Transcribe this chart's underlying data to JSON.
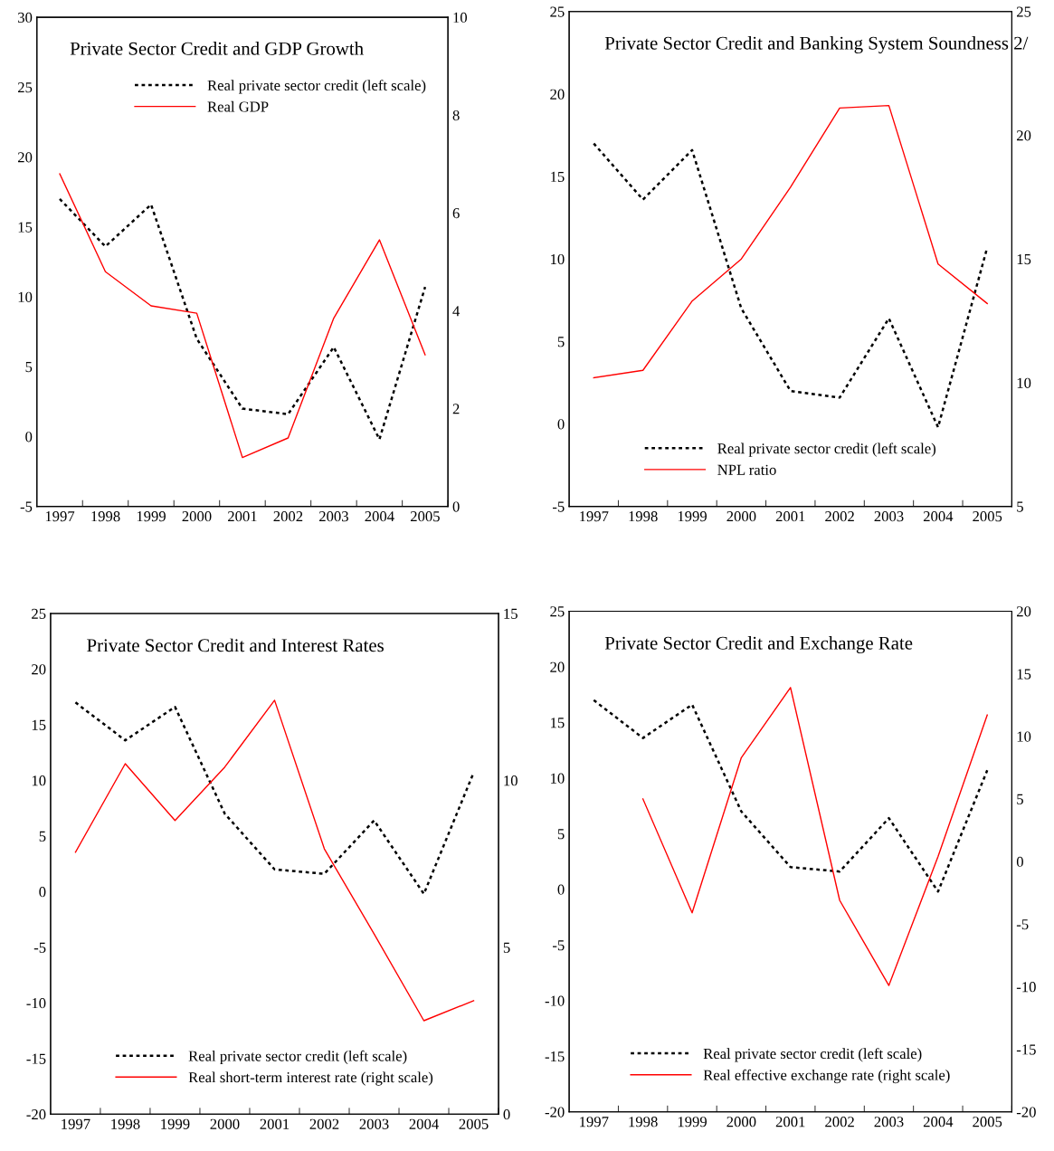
{
  "chart_data": [
    {
      "type": "line",
      "title": "Private Sector Credit and GDP Growth",
      "categories": [
        "1997",
        "1998",
        "1999",
        "2000",
        "2001",
        "2002",
        "2003",
        "2004",
        "2005"
      ],
      "ylim": [
        -5,
        30
      ],
      "yticks": [
        -5,
        0,
        5,
        10,
        15,
        20,
        25,
        30
      ],
      "y2lim": [
        0,
        10
      ],
      "y2ticks": [
        0,
        2,
        4,
        6,
        8,
        10
      ],
      "grid": false,
      "legend": "top right",
      "marker": "none",
      "series": [
        {
          "name": "Real private sector credit (left scale)",
          "color": "#000000",
          "line_style": "dotted",
          "values": [
            17,
            13.6,
            16.6,
            7,
            2,
            1.6,
            6.4,
            -0.2,
            10.7
          ]
        },
        {
          "name": "Real GDP",
          "color": "#ff0000",
          "line_style": "solid",
          "axis": "y2",
          "values": [
            6.8,
            4.8,
            4.1,
            3.95,
            1.0,
            1.4,
            3.85,
            5.45,
            3.1
          ]
        }
      ]
    },
    {
      "type": "line",
      "title": "Private Sector Credit and Banking System Soundness 2/",
      "categories": [
        "1997",
        "1998",
        "1999",
        "2000",
        "2001",
        "2002",
        "2003",
        "2004",
        "2005"
      ],
      "ylim": [
        -5,
        25
      ],
      "yticks": [
        -5,
        0,
        5,
        10,
        15,
        20,
        25
      ],
      "y2lim": [
        5,
        25
      ],
      "y2ticks": [
        5,
        10,
        15,
        20,
        25
      ],
      "grid": false,
      "legend": "bottom",
      "marker": "none",
      "series": [
        {
          "name": "Real private sector credit (left scale)",
          "color": "#000000",
          "line_style": "dotted",
          "values": [
            17,
            13.6,
            16.6,
            7,
            2,
            1.6,
            6.4,
            -0.2,
            10.7
          ]
        },
        {
          "name": "NPL ratio",
          "color": "#ff0000",
          "line_style": "solid",
          "axis": "y2",
          "values": [
            10.2,
            10.5,
            13.3,
            15.0,
            17.9,
            21.1,
            21.2,
            14.8,
            13.2
          ]
        }
      ]
    },
    {
      "type": "line",
      "title": "Private Sector Credit and Interest Rates",
      "categories": [
        "1997",
        "1998",
        "1999",
        "2000",
        "2001",
        "2002",
        "2003",
        "2004",
        "2005"
      ],
      "ylim": [
        -20,
        25
      ],
      "yticks": [
        -20,
        -15,
        -10,
        -5,
        0,
        5,
        10,
        15,
        20,
        25
      ],
      "y2lim": [
        0,
        15
      ],
      "y2ticks": [
        0,
        5,
        10,
        15
      ],
      "grid": false,
      "legend": "bottom",
      "marker": "none",
      "series": [
        {
          "name": "Real private sector credit (left scale)",
          "color": "#000000",
          "line_style": "dotted",
          "values": [
            17,
            13.6,
            16.6,
            7,
            2,
            1.6,
            6.4,
            -0.2,
            10.7
          ]
        },
        {
          "name": "Real short-term interest rate (right scale)",
          "color": "#ff0000",
          "line_style": "solid",
          "axis": "y2",
          "values": [
            7.85,
            10.5,
            8.8,
            10.4,
            12.4,
            7.95,
            5.4,
            2.8,
            3.4
          ]
        }
      ]
    },
    {
      "type": "line",
      "title": "Private Sector Credit and Exchange Rate",
      "categories": [
        "1997",
        "1998",
        "1999",
        "2000",
        "2001",
        "2002",
        "2003",
        "2004",
        "2005"
      ],
      "ylim": [
        -20,
        25
      ],
      "yticks": [
        -20,
        -15,
        -10,
        -5,
        0,
        5,
        10,
        15,
        20,
        25
      ],
      "y2lim": [
        -20,
        20
      ],
      "y2ticks": [
        -20,
        -15,
        -10,
        -5,
        0,
        5,
        10,
        15,
        20
      ],
      "grid": false,
      "legend": "bottom",
      "marker": "none",
      "series": [
        {
          "name": "Real private sector credit (left scale)",
          "color": "#000000",
          "line_style": "dotted",
          "values": [
            17,
            13.6,
            16.6,
            7,
            2,
            1.6,
            6.4,
            -0.2,
            10.7
          ]
        },
        {
          "name": "Real effective exchange rate (right scale)",
          "color": "#ff0000",
          "line_style": "solid",
          "axis": "y2",
          "values": [
            null,
            5.0,
            -4.1,
            8.3,
            13.9,
            -3.1,
            -9.9,
            0.4,
            11.7
          ]
        }
      ]
    }
  ]
}
